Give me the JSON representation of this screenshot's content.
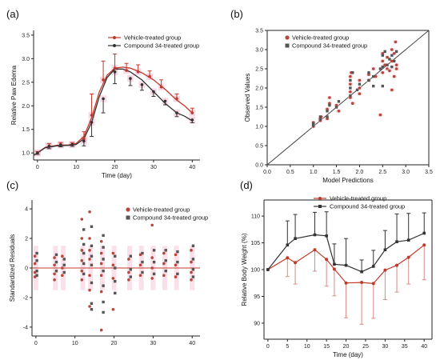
{
  "colors": {
    "vehicle": "#c0392b",
    "compound": "#333333",
    "vehicle_dot": "#b5483b",
    "compound_dot": "#555555",
    "band": "#f5c2d6"
  },
  "panels": {
    "a": {
      "letter": "(a)"
    },
    "b": {
      "letter": "(b)"
    },
    "c": {
      "letter": "(c)"
    },
    "d": {
      "letter": "(d)"
    }
  },
  "chart_data": [
    {
      "id": "a",
      "type": "line",
      "xlabel": "Time (day)",
      "ylabel": "Relative Paw Edema",
      "xlim": [
        -1,
        42
      ],
      "ylim": [
        0.85,
        3.6
      ],
      "xticks": [
        0,
        10,
        20,
        30,
        40
      ],
      "yticks": [
        1.0,
        1.5,
        2.0,
        2.5,
        3.0,
        3.5
      ],
      "legend": "top-right",
      "series": [
        {
          "name": "Vehicle-treated group",
          "x": [
            0,
            3,
            6,
            9,
            12,
            14,
            17,
            20,
            23,
            26,
            29,
            32,
            36,
            40
          ],
          "y": [
            1.0,
            1.15,
            1.18,
            1.18,
            1.3,
            1.8,
            2.55,
            2.8,
            2.75,
            2.72,
            2.62,
            2.4,
            2.15,
            1.85
          ],
          "err": [
            0.03,
            0.05,
            0.04,
            0.04,
            0.15,
            0.45,
            0.4,
            0.3,
            0.15,
            0.15,
            0.12,
            0.15,
            0.1,
            0.1
          ],
          "fit_x": [
            -1,
            0,
            2,
            5,
            8,
            10,
            12,
            14,
            16,
            18,
            20,
            22,
            24,
            27,
            30,
            33,
            36,
            38,
            40
          ],
          "fit_y": [
            0.95,
            1.0,
            1.12,
            1.16,
            1.17,
            1.2,
            1.35,
            1.75,
            2.3,
            2.65,
            2.8,
            2.82,
            2.8,
            2.7,
            2.55,
            2.35,
            2.12,
            2.0,
            1.85
          ]
        },
        {
          "name": "Compound 34-treated group",
          "x": [
            0,
            3,
            6,
            9,
            12,
            14,
            17,
            20,
            24,
            27,
            30,
            33,
            36,
            40
          ],
          "y": [
            1.0,
            1.14,
            1.17,
            1.18,
            1.25,
            1.65,
            2.15,
            2.72,
            2.58,
            2.45,
            2.3,
            2.1,
            1.85,
            1.7
          ],
          "err": [
            0.03,
            0.05,
            0.04,
            0.04,
            0.1,
            0.3,
            0.3,
            0.25,
            0.15,
            0.12,
            0.1,
            0.08,
            0.08,
            0.06
          ],
          "fit_x": [
            -1,
            0,
            2,
            5,
            8,
            10,
            12,
            14,
            16,
            18,
            20,
            22,
            24,
            27,
            30,
            33,
            36,
            38,
            40
          ],
          "fit_y": [
            0.95,
            1.0,
            1.11,
            1.15,
            1.16,
            1.18,
            1.3,
            1.65,
            2.2,
            2.6,
            2.78,
            2.78,
            2.72,
            2.55,
            2.3,
            2.05,
            1.85,
            1.78,
            1.68
          ]
        }
      ]
    },
    {
      "id": "b",
      "type": "scatter",
      "xlabel": "Model Predictions",
      "ylabel": "Observed Values",
      "xlim": [
        0,
        3.5
      ],
      "ylim": [
        0,
        3.5
      ],
      "xticks": [
        0.0,
        0.5,
        1.0,
        1.5,
        2.0,
        2.5,
        3.0,
        3.5
      ],
      "yticks": [
        0.0,
        0.5,
        1.0,
        1.5,
        2.0,
        2.5,
        3.0,
        3.5
      ],
      "legend": "top-left",
      "identity_line": true,
      "series": [
        {
          "name": "Vehicle-treated group",
          "points": [
            [
              1.0,
              1.0
            ],
            [
              1.0,
              1.05
            ],
            [
              1.0,
              1.1
            ],
            [
              1.15,
              1.15
            ],
            [
              1.15,
              1.2
            ],
            [
              1.17,
              1.25
            ],
            [
              1.3,
              1.2
            ],
            [
              1.3,
              1.45
            ],
            [
              1.35,
              1.6
            ],
            [
              1.35,
              1.75
            ],
            [
              1.5,
              1.55
            ],
            [
              1.55,
              1.4
            ],
            [
              1.8,
              1.75
            ],
            [
              1.8,
              1.9
            ],
            [
              1.8,
              2.1
            ],
            [
              1.8,
              2.3
            ],
            [
              1.82,
              2.4
            ],
            [
              1.85,
              1.6
            ],
            [
              2.0,
              2.0
            ],
            [
              2.0,
              2.2
            ],
            [
              2.0,
              1.85
            ],
            [
              2.2,
              2.2
            ],
            [
              2.2,
              2.35
            ],
            [
              2.3,
              2.5
            ],
            [
              2.35,
              2.3
            ],
            [
              2.45,
              1.3
            ],
            [
              2.5,
              2.4
            ],
            [
              2.5,
              2.7
            ],
            [
              2.5,
              2.9
            ],
            [
              2.55,
              2.6
            ],
            [
              2.6,
              2.5
            ],
            [
              2.6,
              2.8
            ],
            [
              2.65,
              2.45
            ],
            [
              2.7,
              2.7
            ],
            [
              2.7,
              3.0
            ],
            [
              2.75,
              2.3
            ],
            [
              2.75,
              2.9
            ],
            [
              2.78,
              3.2
            ],
            [
              2.8,
              2.6
            ],
            [
              2.8,
              2.5
            ],
            [
              2.7,
              1.95
            ]
          ]
        },
        {
          "name": "Compound 34-treated group",
          "points": [
            [
              1.0,
              1.02
            ],
            [
              1.0,
              1.08
            ],
            [
              1.15,
              1.18
            ],
            [
              1.15,
              1.25
            ],
            [
              1.3,
              1.25
            ],
            [
              1.3,
              1.4
            ],
            [
              1.35,
              1.55
            ],
            [
              1.5,
              1.5
            ],
            [
              1.55,
              1.65
            ],
            [
              1.8,
              1.8
            ],
            [
              1.8,
              2.0
            ],
            [
              1.8,
              2.2
            ],
            [
              1.85,
              2.4
            ],
            [
              1.95,
              1.95
            ],
            [
              2.0,
              2.1
            ],
            [
              2.2,
              2.2
            ],
            [
              2.2,
              2.4
            ],
            [
              2.3,
              2.3
            ],
            [
              2.45,
              2.5
            ],
            [
              2.5,
              2.55
            ],
            [
              2.5,
              2.85
            ],
            [
              2.55,
              2.95
            ],
            [
              2.6,
              2.6
            ],
            [
              2.65,
              2.75
            ],
            [
              2.7,
              2.55
            ],
            [
              2.7,
              2.85
            ],
            [
              2.75,
              2.7
            ],
            [
              2.8,
              2.95
            ],
            [
              2.5,
              2.05
            ],
            [
              2.3,
              2.05
            ]
          ]
        }
      ]
    },
    {
      "id": "c",
      "type": "scatter",
      "xlabel": "",
      "ylabel": "Standardized Residuals",
      "xlim": [
        -1,
        42
      ],
      "ylim": [
        -4.6,
        4.6
      ],
      "xticks": [
        0,
        10,
        20,
        30,
        40
      ],
      "yticks": [
        -4,
        -2,
        0,
        2,
        4
      ],
      "legend": "top-right",
      "zero_line": true,
      "times": [
        0,
        5,
        7,
        12,
        14,
        17,
        20,
        24,
        27,
        30,
        33,
        36,
        40
      ],
      "series": [
        {
          "name": "Vehicle-treated group",
          "points": [
            [
              0,
              0.8
            ],
            [
              0,
              0.3
            ],
            [
              0,
              -0.3
            ],
            [
              0,
              -0.6
            ],
            [
              5,
              0.7
            ],
            [
              5,
              0.2
            ],
            [
              5,
              -0.4
            ],
            [
              5,
              -0.8
            ],
            [
              7,
              0.8
            ],
            [
              7,
              0.0
            ],
            [
              7,
              -0.5
            ],
            [
              12,
              3.3
            ],
            [
              12,
              2.0
            ],
            [
              12,
              1.2
            ],
            [
              12,
              0.5
            ],
            [
              12,
              -0.2
            ],
            [
              12,
              -0.8
            ],
            [
              14,
              3.8
            ],
            [
              14,
              2.0
            ],
            [
              14,
              1.2
            ],
            [
              14,
              0.6
            ],
            [
              14,
              -0.5
            ],
            [
              14,
              -1.5
            ],
            [
              14,
              -2.6
            ],
            [
              17,
              1.8
            ],
            [
              17,
              1.0
            ],
            [
              17,
              0.3
            ],
            [
              17,
              -0.5
            ],
            [
              17,
              -1.6
            ],
            [
              17,
              -4.2
            ],
            [
              20,
              1.0
            ],
            [
              20,
              0.2
            ],
            [
              20,
              -0.7
            ],
            [
              20,
              -2.8
            ],
            [
              24,
              0.6
            ],
            [
              24,
              -0.3
            ],
            [
              24,
              -0.8
            ],
            [
              27,
              0.9
            ],
            [
              27,
              0.2
            ],
            [
              27,
              -0.5
            ],
            [
              30,
              2.9
            ],
            [
              30,
              0.7
            ],
            [
              30,
              0.0
            ],
            [
              30,
              -0.7
            ],
            [
              33,
              1.0
            ],
            [
              33,
              0.3
            ],
            [
              33,
              -0.5
            ],
            [
              36,
              0.9
            ],
            [
              36,
              0.2
            ],
            [
              36,
              -0.6
            ],
            [
              40,
              1.2
            ],
            [
              40,
              0.4
            ],
            [
              40,
              -0.3
            ],
            [
              40,
              -0.8
            ]
          ]
        },
        {
          "name": "Compound 34-treated group",
          "points": [
            [
              0,
              1.0
            ],
            [
              0,
              0.5
            ],
            [
              0,
              -0.2
            ],
            [
              0,
              -0.5
            ],
            [
              5,
              0.9
            ],
            [
              5,
              0.4
            ],
            [
              5,
              -0.2
            ],
            [
              7,
              0.6
            ],
            [
              7,
              0.2
            ],
            [
              7,
              -0.3
            ],
            [
              12,
              2.6
            ],
            [
              12,
              1.6
            ],
            [
              12,
              1.0
            ],
            [
              12,
              0.3
            ],
            [
              12,
              -0.4
            ],
            [
              14,
              2.8
            ],
            [
              14,
              1.5
            ],
            [
              14,
              0.8
            ],
            [
              14,
              0.2
            ],
            [
              14,
              -1.0
            ],
            [
              14,
              -2.4
            ],
            [
              14,
              -2.8
            ],
            [
              17,
              2.2
            ],
            [
              17,
              1.4
            ],
            [
              17,
              0.6
            ],
            [
              17,
              -0.2
            ],
            [
              17,
              -1.2
            ],
            [
              17,
              -2.3
            ],
            [
              17,
              -3.0
            ],
            [
              20,
              0.8
            ],
            [
              20,
              0.0
            ],
            [
              20,
              -0.9
            ],
            [
              20,
              -1.7
            ],
            [
              24,
              0.8
            ],
            [
              24,
              -0.1
            ],
            [
              24,
              -0.6
            ],
            [
              27,
              1.0
            ],
            [
              27,
              0.4
            ],
            [
              27,
              -0.3
            ],
            [
              30,
              1.2
            ],
            [
              30,
              0.4
            ],
            [
              30,
              -0.4
            ],
            [
              33,
              1.2
            ],
            [
              33,
              0.5
            ],
            [
              33,
              -0.2
            ],
            [
              36,
              1.1
            ],
            [
              36,
              0.4
            ],
            [
              36,
              -0.4
            ],
            [
              40,
              1.5
            ],
            [
              40,
              0.6
            ],
            [
              40,
              -0.1
            ],
            [
              40,
              -0.6
            ]
          ]
        }
      ]
    },
    {
      "id": "d",
      "type": "line",
      "xlabel": "Time (day)",
      "ylabel": "Relative Body Weight (%)",
      "xlim": [
        -1,
        42
      ],
      "ylim": [
        87,
        113
      ],
      "xticks": [
        0,
        5,
        10,
        15,
        20,
        25,
        30,
        35,
        40
      ],
      "yticks": [
        90,
        95,
        100,
        105,
        110
      ],
      "legend": "top-right",
      "series": [
        {
          "name": "Vehicle-treated group",
          "x": [
            0,
            5,
            7,
            12,
            15,
            17,
            20,
            24,
            27,
            30,
            33,
            36,
            40
          ],
          "y": [
            100.0,
            102.2,
            101.3,
            103.7,
            101.9,
            100.1,
            97.5,
            97.6,
            97.4,
            99.9,
            100.8,
            102.3,
            104.6
          ],
          "err": [
            0,
            3.5,
            4.0,
            4.0,
            5.0,
            5.0,
            6.5,
            7.8,
            6.5,
            5.5,
            5.0,
            5.0,
            6.5
          ]
        },
        {
          "name": "Compound 34-treated group",
          "x": [
            0,
            5,
            7,
            12,
            15,
            17,
            20,
            24,
            27,
            30,
            33,
            36,
            40
          ],
          "y": [
            100.0,
            104.6,
            105.8,
            106.5,
            106.3,
            101.0,
            100.8,
            99.6,
            100.6,
            103.7,
            105.2,
            105.5,
            106.8
          ],
          "err": [
            0,
            4.5,
            4.5,
            4.2,
            4.5,
            3.8,
            5.0,
            2.2,
            3.0,
            3.6,
            5.2,
            5.0,
            3.8
          ]
        }
      ]
    }
  ]
}
